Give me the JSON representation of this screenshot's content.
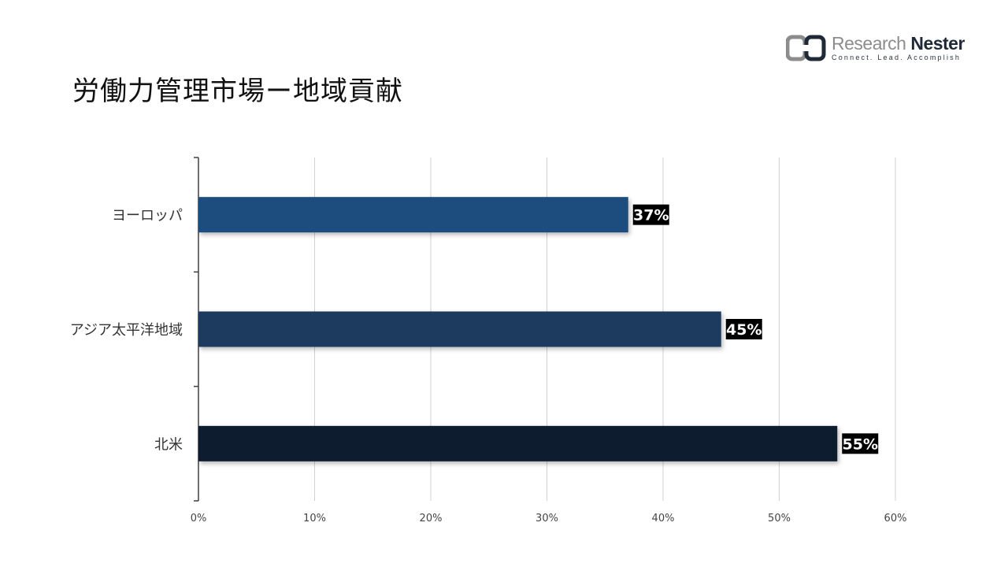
{
  "title": "労働力管理市場ー地域貢献",
  "logo": {
    "name_part1": "Research",
    "name_part2": "Nester",
    "tagline": "Connect. Lead. Accomplish",
    "colors": {
      "gray": "#8c8c8c",
      "dark": "#1f2a36"
    }
  },
  "chart_data": {
    "type": "bar",
    "orientation": "horizontal",
    "categories": [
      "ヨーロッパ",
      "アジア太平洋地域",
      "北米"
    ],
    "values": [
      37,
      45,
      55
    ],
    "data_labels": [
      "37%",
      "45%",
      "55%"
    ],
    "bar_colors": [
      "#1f4e7e",
      "#1a3a5e",
      "#0f1e2d"
    ],
    "xlim": [
      0,
      60
    ],
    "x_ticks": [
      0,
      10,
      20,
      30,
      40,
      50,
      60
    ],
    "x_tick_labels": [
      "0%",
      "10%",
      "20%",
      "30%",
      "40%",
      "50%",
      "60%"
    ],
    "grid": true,
    "xlabel": "",
    "ylabel": ""
  }
}
